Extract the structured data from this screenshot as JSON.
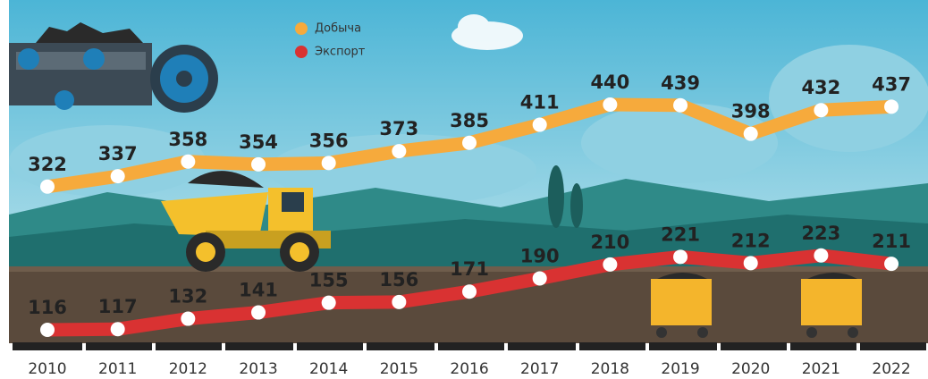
{
  "chart_data": {
    "type": "line",
    "categories": [
      "2010",
      "2011",
      "2012",
      "2013",
      "2014",
      "2015",
      "2016",
      "2017",
      "2018",
      "2019",
      "2020",
      "2021",
      "2022"
    ],
    "series": [
      {
        "name": "Добыча",
        "color": "#f6aa3c",
        "values": [
          322,
          337,
          358,
          354,
          356,
          373,
          385,
          411,
          440,
          439,
          398,
          432,
          437
        ]
      },
      {
        "name": "Экспорт",
        "color": "#d93232",
        "values": [
          116,
          117,
          132,
          141,
          155,
          156,
          171,
          190,
          210,
          221,
          212,
          223,
          211
        ]
      }
    ]
  }
}
